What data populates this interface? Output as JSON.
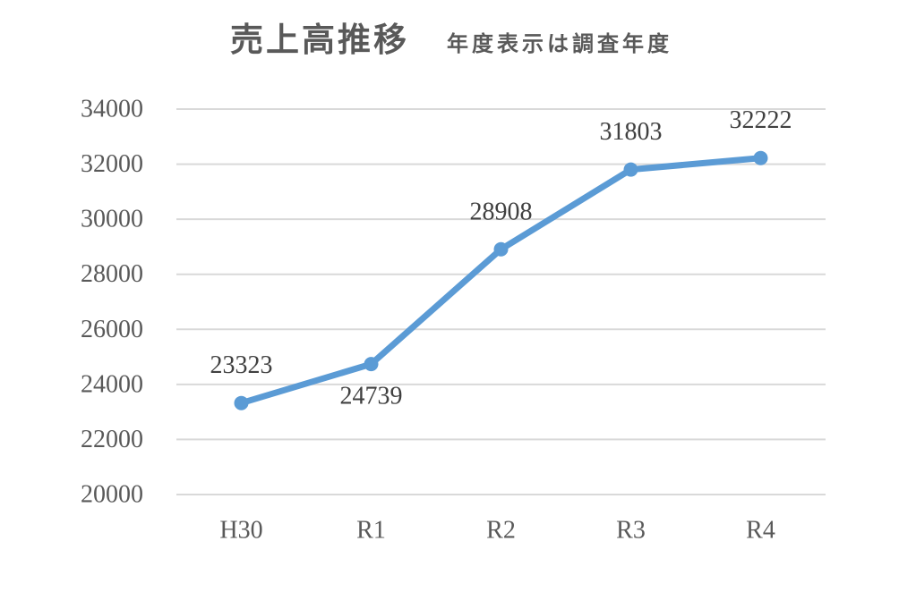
{
  "header": {
    "title": "売上高推移",
    "subtitle": "年度表示は調査年度"
  },
  "chart_data": {
    "type": "line",
    "title": "売上高推移",
    "subtitle": "年度表示は調査年度",
    "categories": [
      "H30",
      "R1",
      "R2",
      "R3",
      "R4"
    ],
    "values": [
      23323,
      24739,
      28908,
      31803,
      32222
    ],
    "data_labels": [
      "23323",
      "24739",
      "28908",
      "31803",
      "32222"
    ],
    "data_label_positions": [
      "above",
      "below",
      "above",
      "above",
      "above"
    ],
    "ylim": [
      20000,
      34000
    ],
    "ytick_step": 2000,
    "yticks": [
      20000,
      22000,
      24000,
      26000,
      28000,
      30000,
      32000,
      34000
    ],
    "grid": "horizontal",
    "legend": "none",
    "marker": "circle",
    "colors": {
      "line": "#5B9BD5",
      "marker": "#5B9BD5",
      "gridline": "#D9D9D9",
      "axis_label": "#595959",
      "data_label": "#404040",
      "title": "#595959"
    }
  }
}
